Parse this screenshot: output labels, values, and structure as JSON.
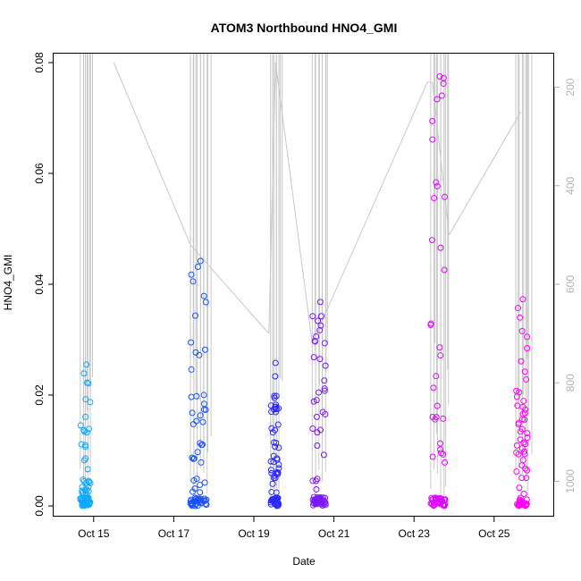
{
  "chart_data": {
    "type": "scatter",
    "title": "ATOM3 Northbound HNO4_GMI",
    "xlabel": "Date",
    "ylabel": "HNO4_GMI",
    "x_range": [
      "2017-10-14T00:00",
      "2017-10-26T12:00"
    ],
    "ylim": [
      0,
      0.08
    ],
    "y2lim": [
      1050,
      150
    ],
    "y2_reversed": true,
    "x_ticks": [
      {
        "date": "2017-10-15",
        "label": "Oct 15"
      },
      {
        "date": "2017-10-17",
        "label": "Oct 17"
      },
      {
        "date": "2017-10-19",
        "label": "Oct 19"
      },
      {
        "date": "2017-10-21",
        "label": "Oct 21"
      },
      {
        "date": "2017-10-23",
        "label": "Oct 23"
      },
      {
        "date": "2017-10-25",
        "label": "Oct 25"
      }
    ],
    "y_ticks": [
      "0.00",
      "0.02",
      "0.04",
      "0.06",
      "0.08"
    ],
    "y2_ticks": [
      "200",
      "400",
      "600",
      "800",
      "1000"
    ],
    "grid": false,
    "legend": "none",
    "colors": {
      "start": "#00aaff",
      "middle": "#3b1cff",
      "end": "#ff00ff",
      "pressure_line": "#c8c8c8"
    },
    "flights": [
      {
        "start": "2017-10-14T16:00",
        "end": "2017-10-14T22:00",
        "profile_dates": [
          "2017-10-14T16:00",
          "2017-10-14T18:00",
          "2017-10-14T19:00",
          "2017-10-14T20:30",
          "2017-10-14T22:00"
        ],
        "y_max": 0.0255,
        "color": "#0fa8ff"
      },
      {
        "start": "2017-10-17T10:00",
        "end": "2017-10-17T20:00",
        "profile_dates": [
          "2017-10-17T10:00",
          "2017-10-17T12:00",
          "2017-10-17T14:00",
          "2017-10-17T16:00",
          "2017-10-17T18:00",
          "2017-10-17T20:00"
        ],
        "y_max": 0.0442,
        "color": "#1a52ff"
      },
      {
        "start": "2017-10-19T10:00",
        "end": "2017-10-19T15:00",
        "profile_dates": [
          "2017-10-19T10:00",
          "2017-10-19T12:00",
          "2017-10-19T13:30",
          "2017-10-19T15:00"
        ],
        "y_max": 0.0258,
        "color": "#2d28ff"
      },
      {
        "start": "2017-10-20T11:00",
        "end": "2017-10-20T19:00",
        "profile_dates": [
          "2017-10-20T11:00",
          "2017-10-20T13:00",
          "2017-10-20T15:00",
          "2017-10-20T17:00",
          "2017-10-20T19:00"
        ],
        "y_max": 0.0368,
        "color": "#7a16ff"
      },
      {
        "start": "2017-10-23T10:00",
        "end": "2017-10-23T19:00",
        "profile_dates": [
          "2017-10-23T10:00",
          "2017-10-23T12:00",
          "2017-10-23T14:00",
          "2017-10-23T16:00",
          "2017-10-23T18:00",
          "2017-10-23T19:00"
        ],
        "y_max": 0.0775,
        "color": "#dd08ff"
      },
      {
        "start": "2017-10-25T13:00",
        "end": "2017-10-25T20:00",
        "profile_dates": [
          "2017-10-25T13:00",
          "2017-10-25T15:00",
          "2017-10-25T17:00",
          "2017-10-25T19:00",
          "2017-10-25T20:00"
        ],
        "y_max": 0.0373,
        "color": "#ff00f6"
      }
    ],
    "transit_pressure": [
      {
        "date": "2017-10-15T12:00",
        "pressure": 150
      },
      {
        "date": "2017-10-17T10:00",
        "pressure": 520
      },
      {
        "date": "2017-10-19T09:00",
        "pressure": 700
      },
      {
        "date": "2017-10-19T13:00",
        "pressure": 150
      },
      {
        "date": "2017-10-20T11:00",
        "pressure": 720
      },
      {
        "date": "2017-10-23T08:00",
        "pressure": 190
      },
      {
        "date": "2017-10-23T11:00",
        "pressure": 190
      },
      {
        "date": "2017-10-23T21:00",
        "pressure": 500
      },
      {
        "date": "2017-10-25T16:00",
        "pressure": 250
      }
    ]
  }
}
